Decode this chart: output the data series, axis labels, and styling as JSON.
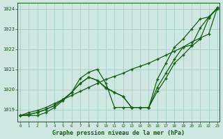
{
  "title": "Graphe pression niveau de la mer (hPa)",
  "xlabel_ticks": [
    0,
    1,
    2,
    3,
    4,
    5,
    6,
    7,
    8,
    9,
    10,
    11,
    12,
    13,
    14,
    15,
    16,
    17,
    18,
    19,
    20,
    21,
    22,
    23
  ],
  "ylim": [
    1018.4,
    1024.3
  ],
  "xlim": [
    -0.3,
    23.3
  ],
  "yticks": [
    1019,
    1020,
    1021,
    1022,
    1023,
    1024
  ],
  "background_color": "#cce8e0",
  "grid_color": "#a8cec8",
  "line_color": "#1a5c1a",
  "line_straight": [
    1018.7,
    1018.85,
    1018.95,
    1019.1,
    1019.3,
    1019.5,
    1019.7,
    1019.9,
    1020.1,
    1020.3,
    1020.5,
    1020.65,
    1020.8,
    1021.0,
    1021.15,
    1021.3,
    1021.5,
    1021.7,
    1021.9,
    1022.1,
    1022.35,
    1022.55,
    1022.75,
    1024.05
  ],
  "line_mid1": [
    1018.7,
    1018.75,
    1018.85,
    1019.0,
    1019.2,
    1019.5,
    1019.85,
    1020.3,
    1020.6,
    1020.45,
    1020.05,
    1019.85,
    1019.65,
    1019.1,
    1019.1,
    1019.1,
    1019.9,
    1020.55,
    1021.3,
    1021.7,
    1022.15,
    1022.5,
    1023.55,
    1024.05
  ],
  "line_mid2": [
    1018.7,
    1018.75,
    1018.85,
    1019.0,
    1019.2,
    1019.5,
    1019.85,
    1020.3,
    1020.6,
    1020.45,
    1020.1,
    1019.85,
    1019.65,
    1019.1,
    1019.1,
    1019.1,
    1020.1,
    1020.8,
    1021.5,
    1022.1,
    1022.2,
    1023.05,
    1023.6,
    1024.05
  ],
  "line_sharp": [
    1018.7,
    1018.7,
    1018.7,
    1018.85,
    1019.1,
    1019.45,
    1019.85,
    1020.55,
    1020.85,
    1021.0,
    1020.3,
    1019.1,
    1019.1,
    1019.1,
    1019.1,
    1019.1,
    1020.5,
    1021.3,
    1022.1,
    1022.5,
    1023.0,
    1023.5,
    1023.6,
    1024.0
  ]
}
